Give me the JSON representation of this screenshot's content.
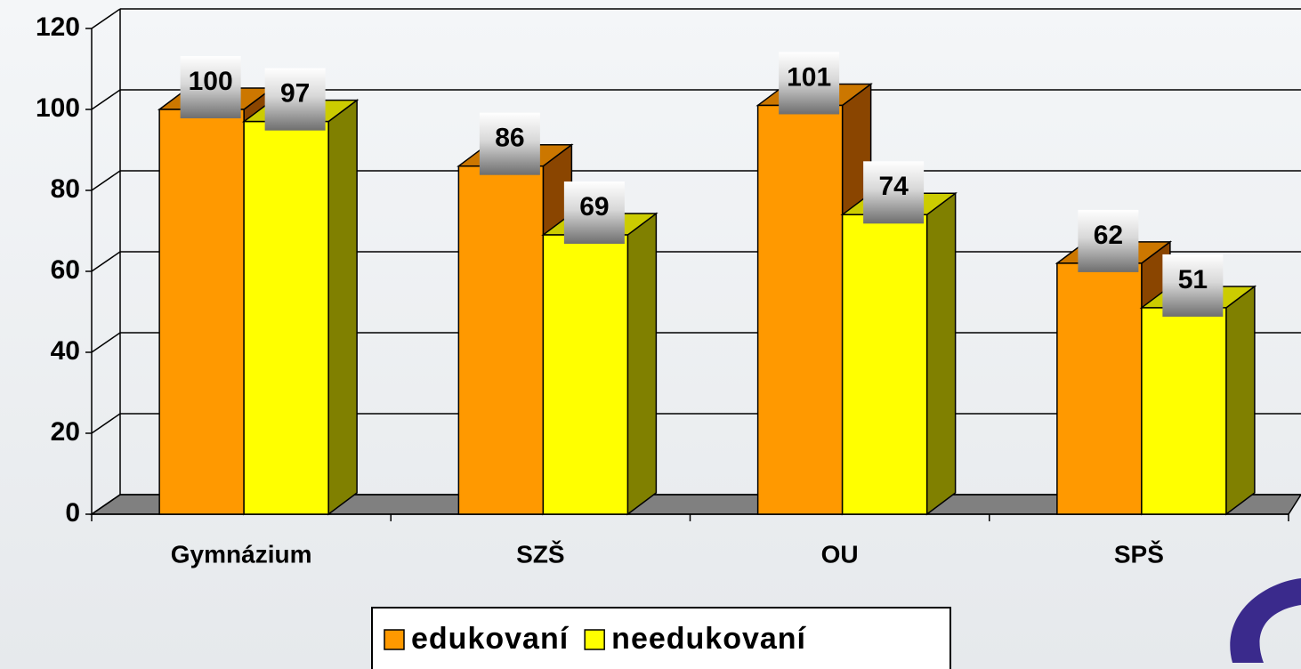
{
  "chart_data": {
    "type": "bar3d",
    "categories": [
      "Gymnázium",
      "SZŠ",
      "OU",
      "SPŠ"
    ],
    "series": [
      {
        "name": "edukovaní",
        "color": "#ff9900",
        "values": [
          100,
          86,
          101,
          62
        ]
      },
      {
        "name": "needukovaní",
        "color": "#ffff00",
        "values": [
          97,
          69,
          74,
          51
        ]
      }
    ],
    "ylim": [
      0,
      120
    ],
    "yticks": [
      0,
      20,
      40,
      60,
      80,
      100,
      120
    ],
    "grid": true,
    "legend": "bottom"
  }
}
